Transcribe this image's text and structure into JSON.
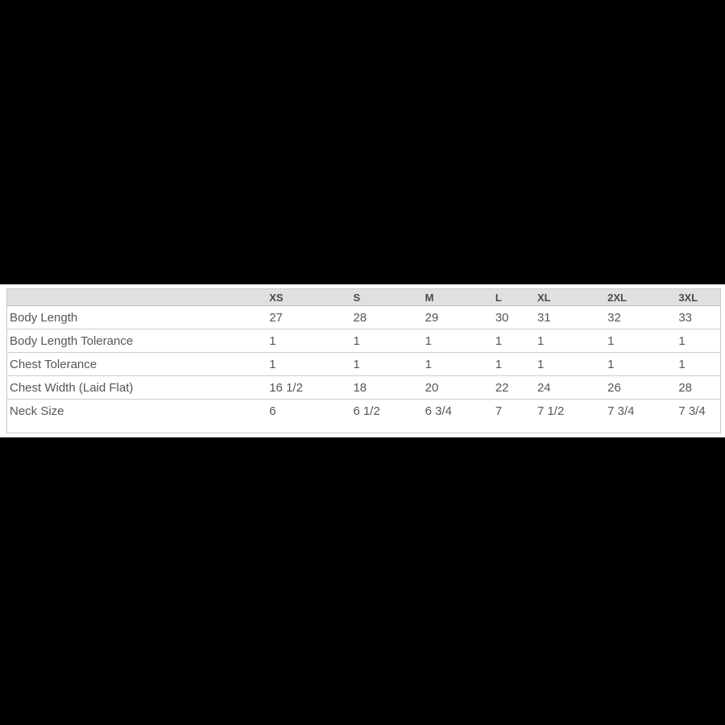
{
  "colors": {
    "page_background": "#000000",
    "panel_background": "#ffffff",
    "header_background": "#e0e0e0",
    "border": "#cccccc",
    "text": "#565656",
    "header_text": "#4a4a4a"
  },
  "chart_data": {
    "type": "table",
    "title": "",
    "corner_label": "",
    "columns": [
      "XS",
      "S",
      "M",
      "L",
      "XL",
      "2XL",
      "3XL"
    ],
    "rows": [
      {
        "label": "Body Length",
        "values": [
          "27",
          "28",
          "29",
          "30",
          "31",
          "32",
          "33"
        ]
      },
      {
        "label": "Body Length Tolerance",
        "values": [
          "1",
          "1",
          "1",
          "1",
          "1",
          "1",
          "1"
        ]
      },
      {
        "label": "Chest Tolerance",
        "values": [
          "1",
          "1",
          "1",
          "1",
          "1",
          "1",
          "1"
        ]
      },
      {
        "label": "Chest Width (Laid Flat)",
        "values": [
          "16 1/2",
          "18",
          "20",
          "22",
          "24",
          "26",
          "28"
        ]
      },
      {
        "label": "Neck Size",
        "values": [
          "6",
          "6 1/2",
          "6 3/4",
          "7",
          "7 1/2",
          "7 3/4",
          "7 3/4"
        ]
      }
    ]
  }
}
